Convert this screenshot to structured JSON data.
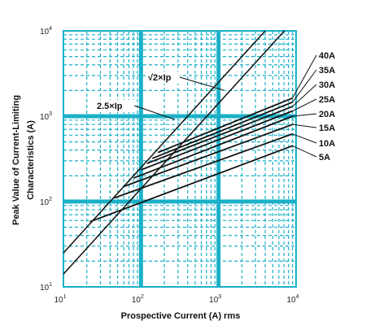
{
  "chart_data": {
    "type": "line",
    "xlabel": "Prospective Current (A) rms",
    "ylabel_line1": "Peak Value of Current-Limiting",
    "ylabel_line2": "Characteristics (A)",
    "x_scale": "log",
    "y_scale": "log",
    "xlim": [
      10,
      10000
    ],
    "ylim": [
      10,
      10000
    ],
    "grid": true,
    "grid_color": "#1ab0c8",
    "line_color": "#111111",
    "x_ticks": [
      {
        "base": "10",
        "exp": "1"
      },
      {
        "base": "10",
        "exp": "2"
      },
      {
        "base": "10",
        "exp": "3"
      },
      {
        "base": "10",
        "exp": "4"
      }
    ],
    "y_ticks": [
      {
        "base": "10",
        "exp": "1"
      },
      {
        "base": "10",
        "exp": "2"
      },
      {
        "base": "10",
        "exp": "3"
      },
      {
        "base": "10",
        "exp": "4"
      }
    ],
    "annotations": [
      {
        "label": "√2×Ip",
        "formula": "y = 1.414 x"
      },
      {
        "label": "2.5×Ip",
        "formula": "y = 2.5 x"
      }
    ],
    "series": [
      {
        "name": "40A",
        "points": [
          [
            165,
            375
          ],
          [
            9000,
            1630
          ]
        ]
      },
      {
        "name": "35A",
        "points": [
          [
            140,
            320
          ],
          [
            9000,
            1460
          ]
        ]
      },
      {
        "name": "30A",
        "points": [
          [
            120,
            280
          ],
          [
            9000,
            1300
          ]
        ]
      },
      {
        "name": "25A",
        "points": [
          [
            100,
            235
          ],
          [
            9000,
            1150
          ]
        ]
      },
      {
        "name": "20A",
        "points": [
          [
            80,
            188
          ],
          [
            9000,
            1000
          ]
        ]
      },
      {
        "name": "15A",
        "points": [
          [
            60,
            150
          ],
          [
            9000,
            800
          ]
        ]
      },
      {
        "name": "10A",
        "points": [
          [
            45,
            110
          ],
          [
            9000,
            620
          ]
        ]
      },
      {
        "name": "5A",
        "points": [
          [
            22,
            58
          ],
          [
            9000,
            450
          ]
        ]
      }
    ]
  }
}
